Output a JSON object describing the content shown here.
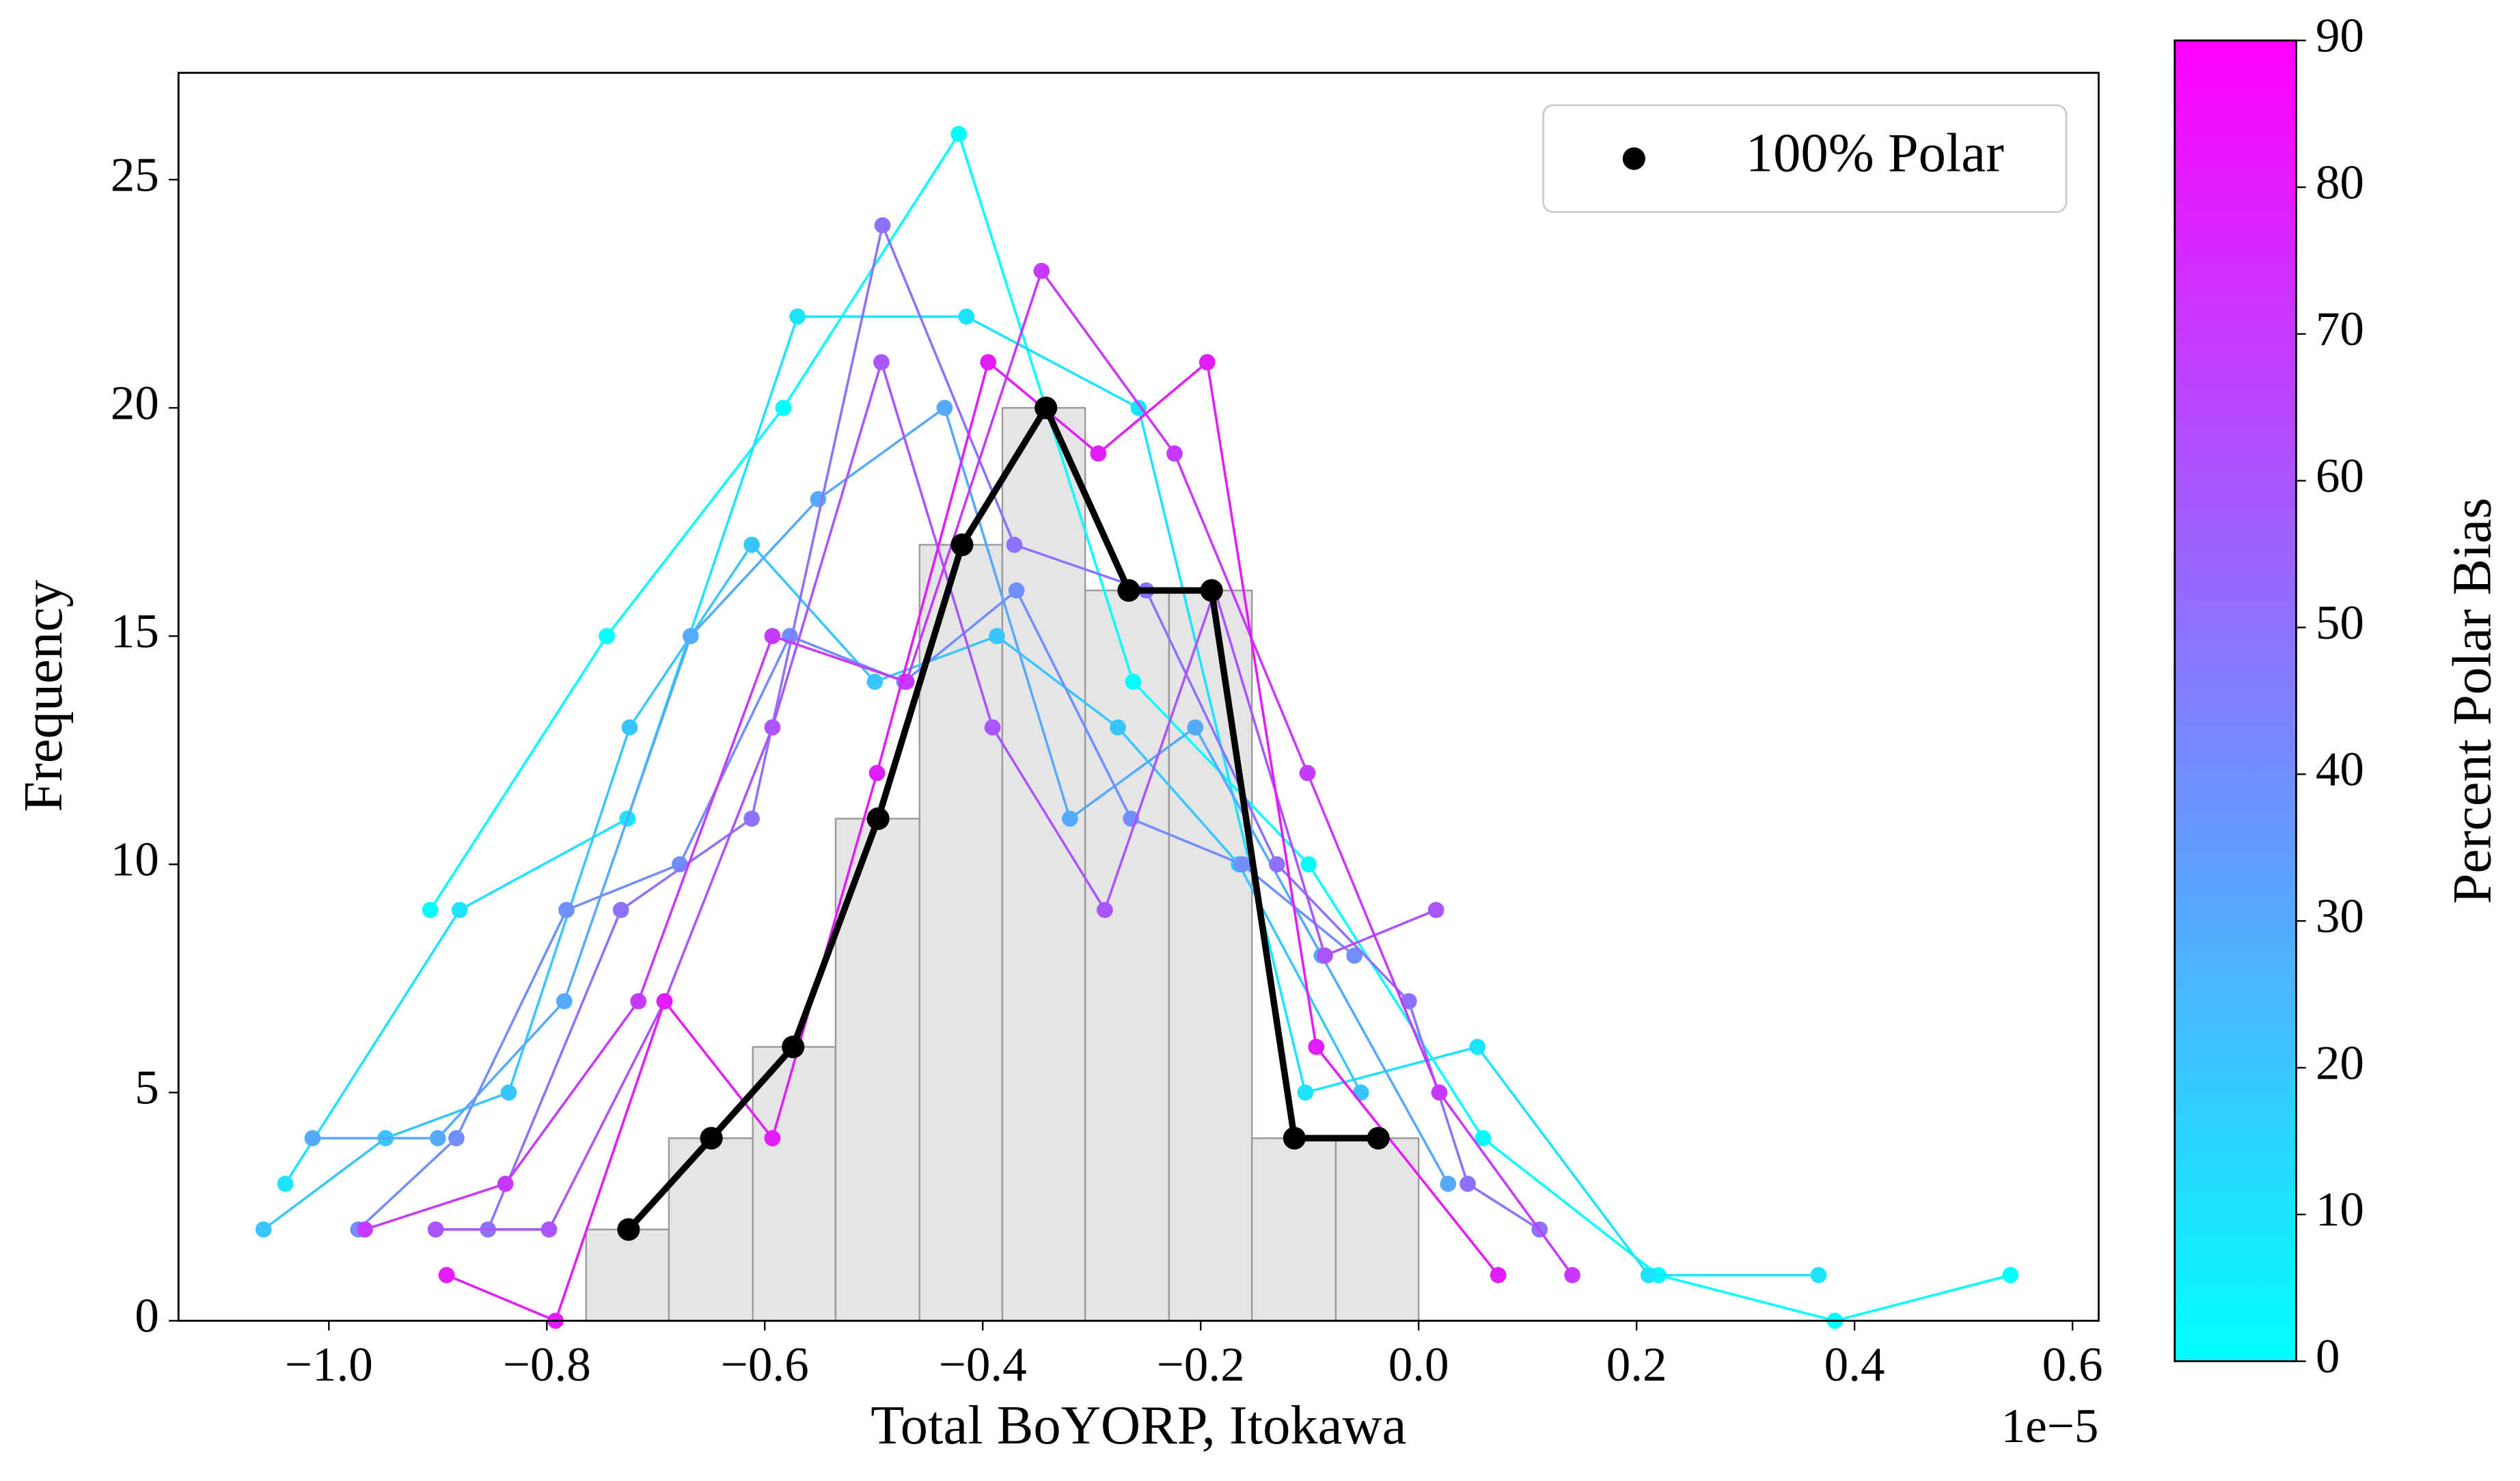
{
  "chart_data": {
    "type": "histogram",
    "xlabel": "Total BoYORP, Itokawa",
    "ylabel": "Frequency",
    "x_offset_label": "1e−5",
    "bins": [
      -0.764,
      -0.688,
      -0.611,
      -0.535,
      -0.458,
      -0.382,
      -0.306,
      -0.229,
      -0.153,
      -0.076,
      0.0
    ],
    "values": [
      2,
      4,
      6,
      11,
      17,
      20,
      16,
      16,
      4,
      4
    ],
    "color": "#e5e5e5",
    "edgecolor": "#999999",
    "xlim": [
      -1.138,
      0.624
    ],
    "ylim": [
      0,
      27.34
    ],
    "xticks": [
      {
        "value": -1.0,
        "label": "−1.0"
      },
      {
        "value": -0.8,
        "label": "−0.8"
      },
      {
        "value": -0.6,
        "label": "−0.6"
      },
      {
        "value": -0.4,
        "label": "−0.4"
      },
      {
        "value": -0.2,
        "label": "−0.2"
      },
      {
        "value": 0.0,
        "label": "0.0"
      },
      {
        "value": 0.2,
        "label": "0.2"
      },
      {
        "value": 0.4,
        "label": "0.4"
      },
      {
        "value": 0.6,
        "label": "0.6"
      }
    ],
    "yticks": [
      0,
      5,
      10,
      15,
      20,
      25
    ],
    "legend": "upper right",
    "series": [
      {
        "color": "#00ffff",
        "x": [
          -0.907,
          -0.745,
          -0.583,
          -0.422,
          -0.262,
          -0.101,
          0.059,
          0.22,
          0.382,
          0.543
        ],
        "values": [
          9,
          15,
          20,
          26,
          14,
          10,
          4,
          1,
          0,
          1
        ]
      },
      {
        "color": "#1ce3ff",
        "x": [
          -1.04,
          -0.88,
          -0.726,
          -0.57,
          -0.415,
          -0.257,
          -0.104,
          0.054,
          0.211,
          0.367
        ],
        "values": [
          3,
          9,
          11,
          22,
          22,
          20,
          5,
          6,
          1,
          1
        ]
      },
      {
        "color": "#39c6ff",
        "x": [
          -1.06,
          -0.948,
          -0.835,
          -0.724,
          -0.612,
          -0.499,
          -0.387,
          -0.276,
          -0.165,
          -0.053
        ],
        "values": [
          2,
          4,
          5,
          13,
          17,
          14,
          15,
          13,
          10,
          5
        ]
      },
      {
        "color": "#55aaff",
        "x": [
          -1.015,
          -0.9,
          -0.784,
          -0.668,
          -0.551,
          -0.435,
          -0.32,
          -0.205,
          -0.089,
          0.027
        ],
        "values": [
          4,
          4,
          7,
          15,
          18,
          20,
          11,
          13,
          8,
          3
        ]
      },
      {
        "color": "#718eff",
        "x": [
          -0.973,
          -0.883,
          -0.782,
          -0.678,
          -0.577,
          -0.472,
          -0.369,
          -0.264,
          -0.162,
          -0.059
        ],
        "values": [
          2,
          4,
          9,
          10,
          15,
          14,
          16,
          11,
          10,
          8
        ]
      },
      {
        "color": "#8e71ff",
        "x": [
          -0.854,
          -0.732,
          -0.612,
          -0.492,
          -0.371,
          -0.25,
          -0.13,
          -0.009,
          0.045,
          0.111
        ],
        "values": [
          2,
          9,
          11,
          24,
          17,
          16,
          10,
          7,
          3,
          2
        ]
      },
      {
        "color": "#aa55ff",
        "x": [
          -0.902,
          -0.798,
          -0.692,
          -0.593,
          -0.493,
          -0.391,
          -0.288,
          -0.187,
          -0.086,
          0.016
        ],
        "values": [
          2,
          2,
          7,
          13,
          21,
          13,
          9,
          16,
          8,
          9
        ]
      },
      {
        "color": "#c639ff",
        "x": [
          -0.967,
          -0.838,
          -0.716,
          -0.593,
          -0.47,
          -0.346,
          -0.224,
          -0.102,
          0.019,
          0.141
        ],
        "values": [
          2,
          3,
          7,
          15,
          14,
          23,
          19,
          12,
          5,
          1
        ]
      },
      {
        "color": "#e31cff",
        "x": [
          -0.892,
          -0.792,
          -0.692,
          -0.593,
          -0.497,
          -0.395,
          -0.294,
          -0.194,
          -0.094,
          0.073
        ],
        "values": [
          1,
          0,
          7,
          4,
          12,
          21,
          19,
          21,
          6,
          1
        ]
      },
      {
        "name": "100% Polar",
        "color": "#000000",
        "x": [
          -0.725,
          -0.649,
          -0.574,
          -0.496,
          -0.419,
          -0.342,
          -0.266,
          -0.19,
          -0.114,
          -0.037
        ],
        "values": [
          2,
          4,
          6,
          11,
          17,
          20,
          16,
          16,
          4,
          4
        ]
      }
    ],
    "colorbar": {
      "label": "Percent Polar Bias",
      "lim": [
        0,
        90
      ],
      "ticks": [
        0,
        10,
        20,
        30,
        40,
        50,
        60,
        70,
        80,
        90
      ],
      "colors": [
        "#00ffff",
        "#ff00ff"
      ]
    }
  }
}
